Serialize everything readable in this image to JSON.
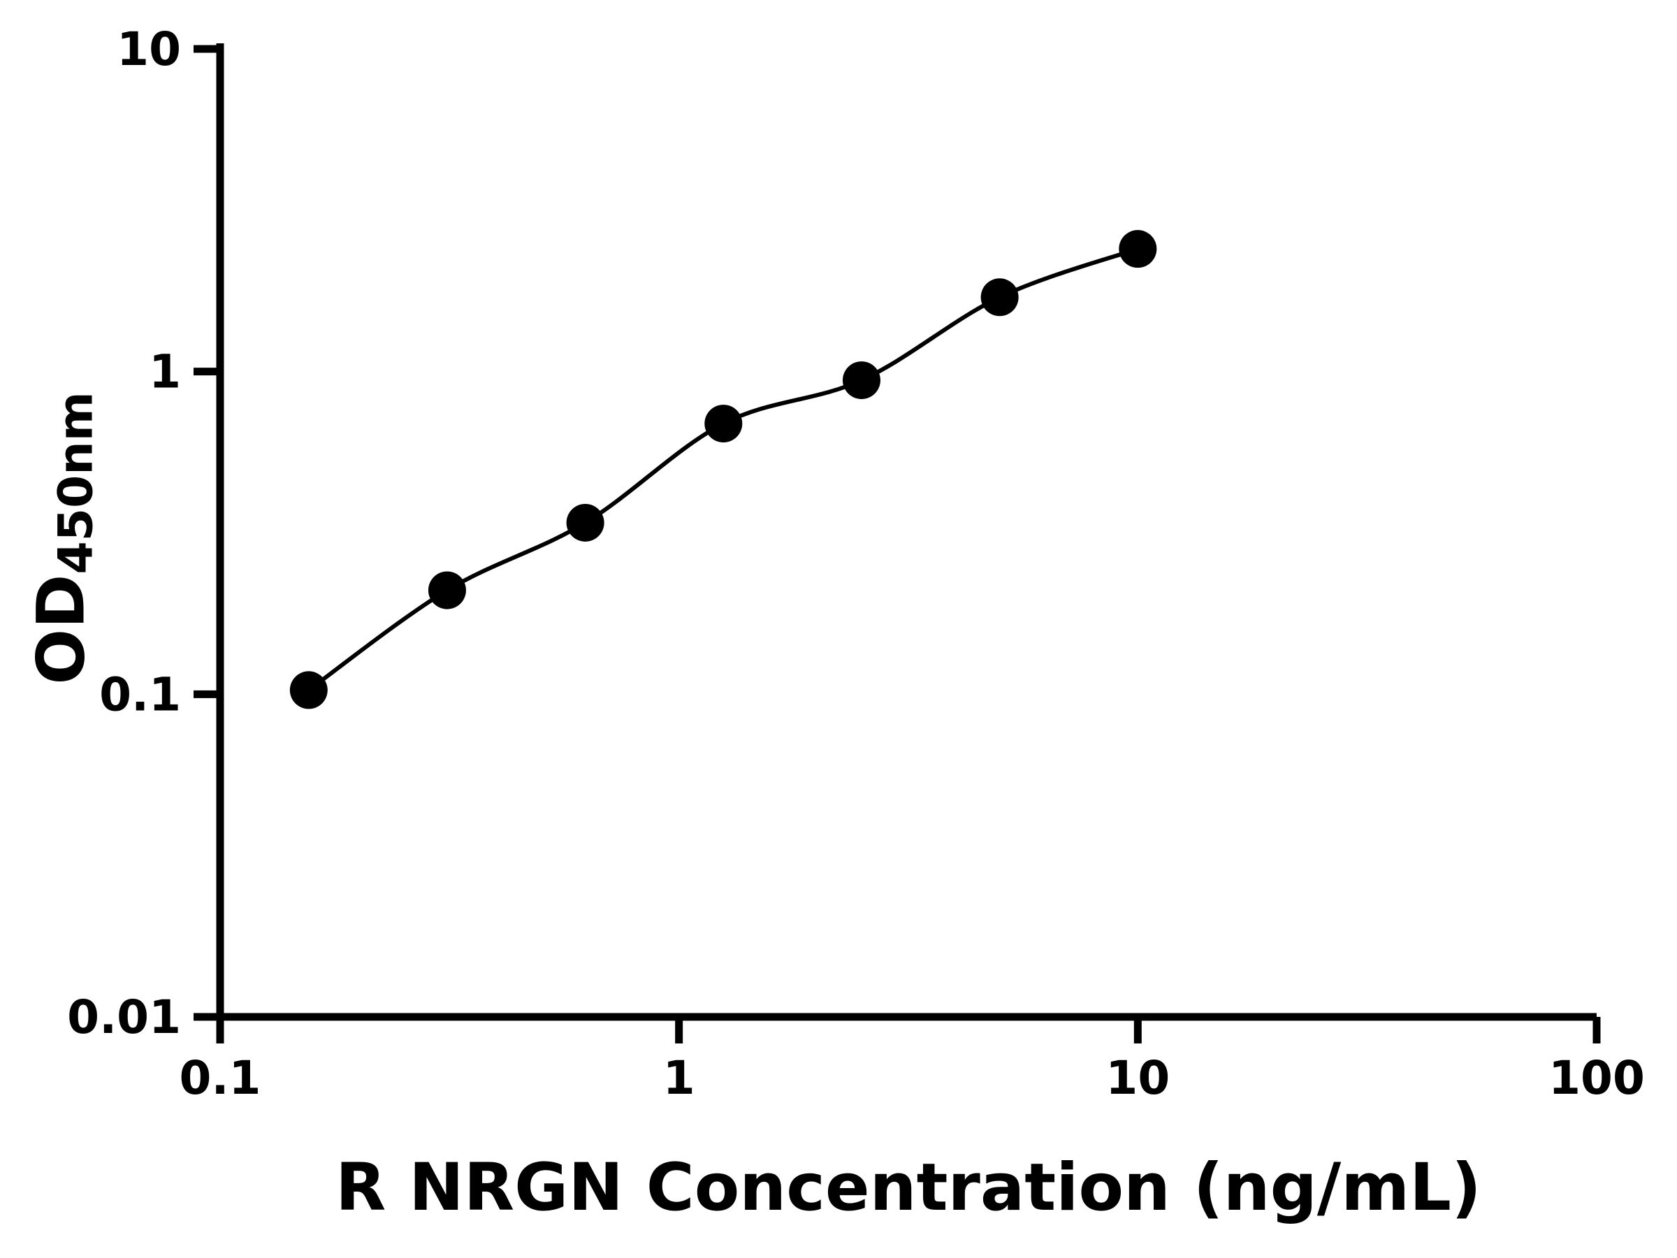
{
  "figure": {
    "background": "#ffffff",
    "axis_color": "#000000",
    "line_color": "#000000",
    "point_color": "#000000"
  },
  "x_axis": {
    "label": "R NRGN Concentration (ng/mL)",
    "ticks": [
      "0.1",
      "1",
      "10",
      "100"
    ]
  },
  "y_axis": {
    "label_main": "OD",
    "label_sub": "450nm",
    "ticks": [
      "10",
      "1",
      "0.1",
      "0.01"
    ]
  },
  "chart_data": {
    "type": "scatter",
    "title": "",
    "xlabel": "R NRGN Concentration (ng/mL)",
    "ylabel": "OD450nm",
    "xscale": "log",
    "yscale": "log",
    "xlim": [
      0.1,
      100
    ],
    "ylim": [
      0.01,
      10
    ],
    "x_tick_labels": [
      0.1,
      1,
      10,
      100
    ],
    "y_tick_labels": [
      10,
      1,
      0.1,
      0.01
    ],
    "grid": false,
    "legend": false,
    "curve": "smooth-fit-through-points",
    "x": [
      0.156,
      0.3125,
      0.625,
      1.25,
      2.5,
      5,
      10
    ],
    "y": [
      0.103,
      0.21,
      0.34,
      0.69,
      0.94,
      1.7,
      2.4
    ]
  }
}
